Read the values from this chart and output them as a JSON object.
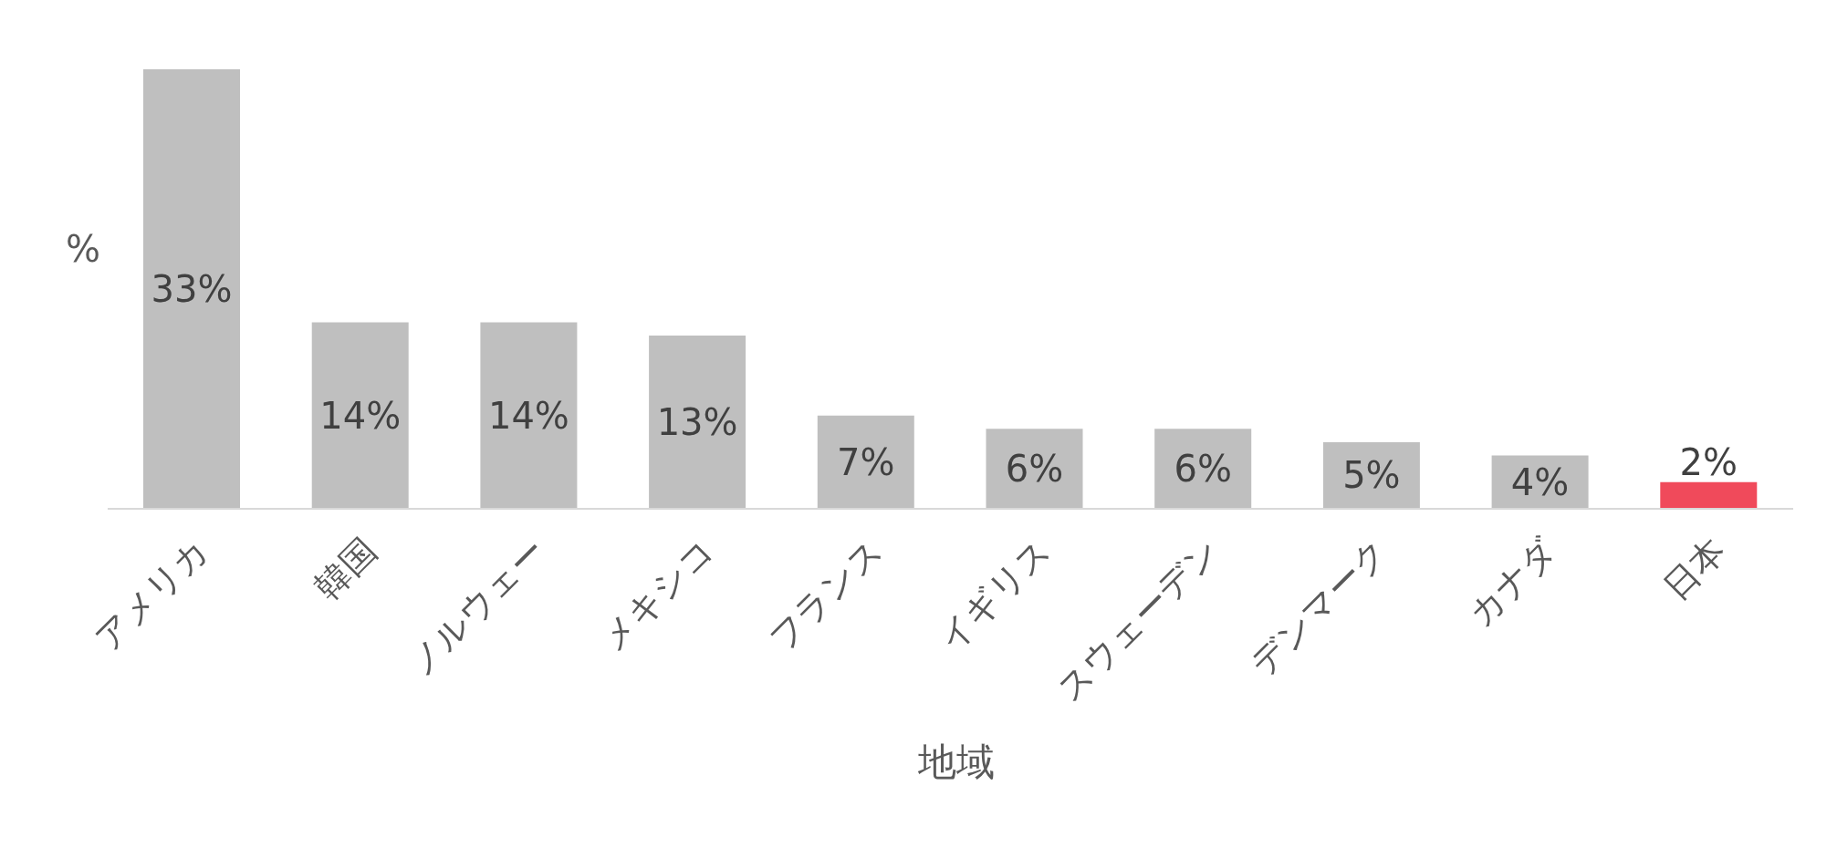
{
  "chart_data": {
    "type": "bar",
    "xlabel": "地域",
    "ylabel": "%",
    "categories": [
      "アメリカ",
      "韓国",
      "ノルウェー",
      "メキシコ",
      "フランス",
      "イギリス",
      "スウェーデン",
      "デンマーク",
      "カナダ",
      "日本"
    ],
    "values": [
      33,
      14,
      14,
      13,
      7,
      6,
      6,
      5,
      4,
      2
    ],
    "value_labels": [
      "33%",
      "14%",
      "14%",
      "13%",
      "7%",
      "6%",
      "6%",
      "5%",
      "4%",
      "2%"
    ],
    "colors": [
      "#bfbfbf",
      "#bfbfbf",
      "#bfbfbf",
      "#bfbfbf",
      "#bfbfbf",
      "#bfbfbf",
      "#bfbfbf",
      "#bfbfbf",
      "#bfbfbf",
      "#f04a5b"
    ],
    "grid": false,
    "legend": false
  }
}
